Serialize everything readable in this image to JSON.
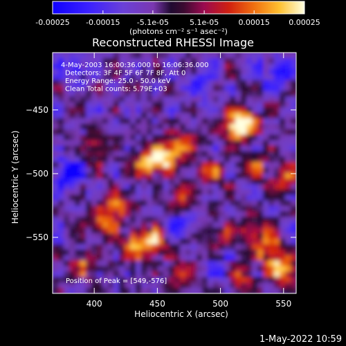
{
  "colors": {
    "background": "#000000",
    "foreground": "#ffffff",
    "colormap_stops": [
      "#1000ff",
      "#5a3fd0",
      "#7b3fb0",
      "#1a0a20",
      "#7a0a5a",
      "#c0151a",
      "#f06a0a",
      "#ffb020",
      "#ffff50",
      "#ffffff"
    ]
  },
  "colorbar": {
    "tick_labels": [
      "-0.00025",
      "-0.00015",
      "-5.1e-05",
      "5.1e-05",
      "0.00015",
      "0.00025"
    ],
    "units_text": "(photons cm⁻² s⁻¹ asec⁻²)",
    "range": [
      -0.00025,
      0.00025
    ]
  },
  "chart_data": {
    "type": "heatmap",
    "title": "Reconstructed RHESSI Image",
    "xlabel": "Heliocentric X (arcsec)",
    "ylabel": "Heliocentric Y (arcsec)",
    "xlim": [
      367,
      560
    ],
    "ylim": [
      -594,
      -405
    ],
    "x_ticks": [
      400,
      450,
      500,
      550
    ],
    "y_ticks": [
      -450,
      -500,
      -550
    ],
    "annotations": [
      "4-May-2003 16:00:36.000 to 16:06:36.000",
      "Detectors: 3F 4F 5F 6F 7F 8F, Att 0",
      "Energy Range: 25.0 - 50.0 keV",
      "Clean     Total counts: 5.79E+03"
    ],
    "peak_label": "Position of Peak = [549,-576]",
    "peak": [
      549,
      -576
    ],
    "bright_sources": [
      {
        "x": 406,
        "y": -540,
        "v": 0.8
      },
      {
        "x": 418,
        "y": -525,
        "v": 0.75
      },
      {
        "x": 432,
        "y": -556,
        "v": 0.85
      },
      {
        "x": 448,
        "y": -553,
        "v": 0.9
      },
      {
        "x": 455,
        "y": -486,
        "v": 1.0
      },
      {
        "x": 442,
        "y": -492,
        "v": 0.85
      },
      {
        "x": 470,
        "y": -478,
        "v": 0.7
      },
      {
        "x": 513,
        "y": -465,
        "v": 0.9
      },
      {
        "x": 520,
        "y": -458,
        "v": 0.85
      },
      {
        "x": 493,
        "y": -500,
        "v": 0.6
      },
      {
        "x": 549,
        "y": -576,
        "v": 1.0
      },
      {
        "x": 539,
        "y": -560,
        "v": 0.8
      },
      {
        "x": 525,
        "y": -545,
        "v": 0.7
      },
      {
        "x": 515,
        "y": -580,
        "v": 0.65
      },
      {
        "x": 552,
        "y": -505,
        "v": 0.6
      },
      {
        "x": 402,
        "y": -480,
        "v": 0.5
      },
      {
        "x": 392,
        "y": -572,
        "v": 0.55
      },
      {
        "x": 470,
        "y": -578,
        "v": 0.6
      },
      {
        "x": 498,
        "y": -550,
        "v": 0.45
      },
      {
        "x": 468,
        "y": -520,
        "v": 0.55
      },
      {
        "x": 530,
        "y": -495,
        "v": 0.5
      }
    ],
    "dark_regions": [
      {
        "x": 380,
        "y": -500,
        "v": -0.9
      },
      {
        "x": 385,
        "y": -415,
        "v": -0.6
      },
      {
        "x": 485,
        "y": -430,
        "v": -0.5
      },
      {
        "x": 545,
        "y": -420,
        "v": -0.7
      },
      {
        "x": 470,
        "y": -540,
        "v": -0.5
      },
      {
        "x": 500,
        "y": -575,
        "v": -0.4
      }
    ]
  },
  "footer": {
    "timestamp": "1-May-2022 10:59"
  }
}
